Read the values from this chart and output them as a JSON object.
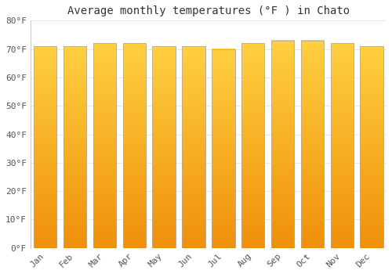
{
  "title": "Average monthly temperatures (°F ) in Chato",
  "months": [
    "Jan",
    "Feb",
    "Mar",
    "Apr",
    "May",
    "Jun",
    "Jul",
    "Aug",
    "Sep",
    "Oct",
    "Nov",
    "Dec"
  ],
  "values": [
    71,
    71,
    72,
    72,
    71,
    71,
    70,
    72,
    73,
    73,
    72,
    71
  ],
  "bar_color_top": "#FFD040",
  "bar_color_bottom": "#F0900A",
  "bar_edge_color": "#AAAAAA",
  "background_color": "#FFFFFF",
  "grid_color": "#E8E8E8",
  "ylim": [
    0,
    80
  ],
  "yticks": [
    0,
    10,
    20,
    30,
    40,
    50,
    60,
    70,
    80
  ],
  "title_fontsize": 10,
  "tick_fontsize": 8,
  "font_family": "monospace"
}
